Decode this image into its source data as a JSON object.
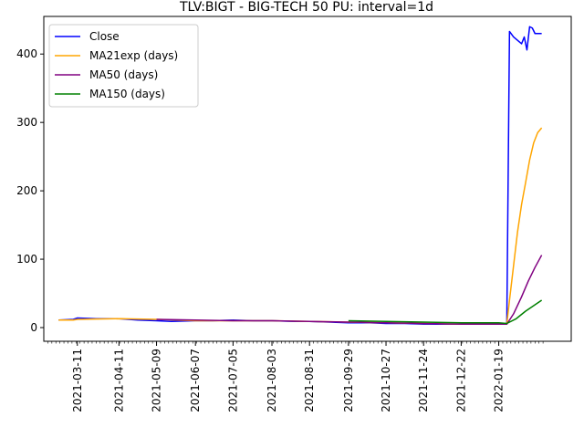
{
  "chart_data": {
    "type": "line",
    "title": "TLV:BIGT - BIG-TECH 50 PU: interval=1d",
    "xlabel": "",
    "ylabel": "",
    "x_type": "date",
    "xlim": [
      "2021-02-14",
      "2022-03-14"
    ],
    "ylim": [
      -20,
      455
    ],
    "yticks": [
      0,
      100,
      200,
      300,
      400
    ],
    "xticks": [
      "2021-03-11",
      "2021-04-11",
      "2021-05-09",
      "2021-06-07",
      "2021-07-05",
      "2021-08-03",
      "2021-08-31",
      "2021-09-29",
      "2021-10-27",
      "2021-11-24",
      "2021-12-22",
      "2022-01-19"
    ],
    "grid": false,
    "legend": "top-left",
    "series": [
      {
        "name": "Close",
        "color": "#0000ff",
        "points": [
          [
            "2021-02-25",
            11
          ],
          [
            "2021-03-08",
            12
          ],
          [
            "2021-03-11",
            14
          ],
          [
            "2021-03-25",
            13
          ],
          [
            "2021-04-11",
            13
          ],
          [
            "2021-04-25",
            11
          ],
          [
            "2021-05-09",
            10
          ],
          [
            "2021-05-20",
            9
          ],
          [
            "2021-06-07",
            10
          ],
          [
            "2021-06-20",
            10
          ],
          [
            "2021-07-05",
            11
          ],
          [
            "2021-07-20",
            10
          ],
          [
            "2021-08-03",
            10
          ],
          [
            "2021-08-20",
            9
          ],
          [
            "2021-08-31",
            9
          ],
          [
            "2021-09-15",
            8
          ],
          [
            "2021-09-29",
            7
          ],
          [
            "2021-10-15",
            7
          ],
          [
            "2021-10-27",
            6
          ],
          [
            "2021-11-10",
            6
          ],
          [
            "2021-11-24",
            5
          ],
          [
            "2021-12-08",
            5
          ],
          [
            "2021-12-22",
            5
          ],
          [
            "2022-01-05",
            5
          ],
          [
            "2022-01-19",
            6
          ],
          [
            "2022-01-25",
            5
          ],
          [
            "2022-01-27",
            433
          ],
          [
            "2022-01-30",
            425
          ],
          [
            "2022-02-02",
            420
          ],
          [
            "2022-02-05",
            415
          ],
          [
            "2022-02-07",
            425
          ],
          [
            "2022-02-09",
            406
          ],
          [
            "2022-02-11",
            440
          ],
          [
            "2022-02-13",
            438
          ],
          [
            "2022-02-15",
            430
          ],
          [
            "2022-02-20",
            430
          ]
        ]
      },
      {
        "name": "MA21exp (days)",
        "color": "#ffa500",
        "points": [
          [
            "2021-02-25",
            11
          ],
          [
            "2021-03-08",
            11
          ],
          [
            "2021-03-11",
            12
          ],
          [
            "2021-04-11",
            13
          ],
          [
            "2021-05-09",
            12
          ],
          [
            "2021-06-07",
            10
          ],
          [
            "2021-07-05",
            10
          ],
          [
            "2021-08-03",
            10
          ],
          [
            "2021-08-31",
            9
          ],
          [
            "2021-09-29",
            8
          ],
          [
            "2021-10-27",
            7
          ],
          [
            "2021-11-24",
            6
          ],
          [
            "2021-12-22",
            5
          ],
          [
            "2022-01-19",
            5
          ],
          [
            "2022-01-25",
            5
          ],
          [
            "2022-01-27",
            40
          ],
          [
            "2022-01-30",
            90
          ],
          [
            "2022-02-02",
            140
          ],
          [
            "2022-02-05",
            180
          ],
          [
            "2022-02-08",
            212
          ],
          [
            "2022-02-11",
            245
          ],
          [
            "2022-02-14",
            270
          ],
          [
            "2022-02-17",
            285
          ],
          [
            "2022-02-20",
            292
          ]
        ]
      },
      {
        "name": "MA50 (days)",
        "color": "#800080",
        "points": [
          [
            "2021-05-09",
            12
          ],
          [
            "2021-06-07",
            11
          ],
          [
            "2021-07-05",
            10
          ],
          [
            "2021-08-03",
            10
          ],
          [
            "2021-08-31",
            9
          ],
          [
            "2021-09-29",
            8
          ],
          [
            "2021-10-27",
            7
          ],
          [
            "2021-11-24",
            6
          ],
          [
            "2021-12-22",
            5
          ],
          [
            "2022-01-19",
            5
          ],
          [
            "2022-01-25",
            5
          ],
          [
            "2022-01-30",
            20
          ],
          [
            "2022-02-05",
            45
          ],
          [
            "2022-02-10",
            68
          ],
          [
            "2022-02-15",
            88
          ],
          [
            "2022-02-20",
            106
          ]
        ]
      },
      {
        "name": "MA150 (days)",
        "color": "#008000",
        "points": [
          [
            "2021-09-29",
            10
          ],
          [
            "2021-10-27",
            9
          ],
          [
            "2021-11-24",
            8
          ],
          [
            "2021-12-22",
            7
          ],
          [
            "2022-01-19",
            7
          ],
          [
            "2022-01-25",
            6
          ],
          [
            "2022-02-01",
            13
          ],
          [
            "2022-02-08",
            24
          ],
          [
            "2022-02-14",
            32
          ],
          [
            "2022-02-20",
            40
          ]
        ]
      }
    ]
  }
}
